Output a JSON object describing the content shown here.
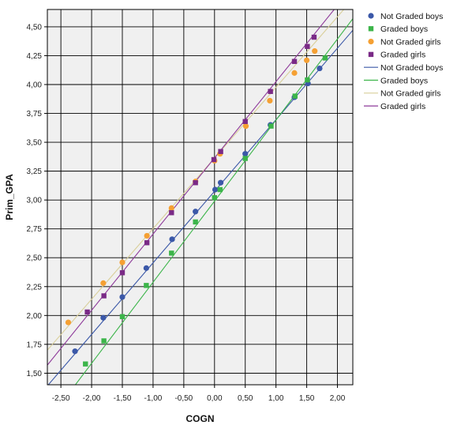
{
  "chart_data": {
    "type": "scatter",
    "xlabel": "COGN",
    "ylabel": "Prim_GPA",
    "xlim": [
      -2.72,
      2.25
    ],
    "ylim": [
      1.4,
      4.65
    ],
    "xticks": [
      -2.5,
      -2.0,
      -1.5,
      -1.0,
      -0.5,
      0.0,
      0.5,
      1.0,
      1.5,
      2.0
    ],
    "xtick_labels": [
      "-2,50",
      "-2,00",
      "-1,50",
      "-1,00",
      "-0,50",
      "0,00",
      "0,50",
      "1,00",
      "1,50",
      "2,00"
    ],
    "yticks": [
      1.5,
      1.75,
      2.0,
      2.25,
      2.5,
      2.75,
      3.0,
      3.25,
      3.5,
      3.75,
      4.0,
      4.25,
      4.5
    ],
    "ytick_labels": [
      "1,50",
      "1,75",
      "2,00",
      "2,25",
      "2,50",
      "2,75",
      "3,00",
      "3,25",
      "3,50",
      "3,75",
      "4,00",
      "4,25",
      "4,50"
    ],
    "grid": true,
    "legend_position": "right",
    "series": [
      {
        "name": "Not Graded boys",
        "kind": "points",
        "marker": "circle",
        "color": "#3b58a8",
        "x": [
          -2.27,
          -1.81,
          -1.5,
          -1.11,
          -0.69,
          -0.31,
          0.01,
          0.1,
          0.5,
          0.91,
          1.3,
          1.52,
          1.71
        ],
        "y": [
          1.69,
          1.98,
          2.16,
          2.41,
          2.66,
          2.9,
          3.09,
          3.15,
          3.4,
          3.65,
          3.89,
          4.01,
          4.14
        ]
      },
      {
        "name": "Graded boys",
        "kind": "points",
        "marker": "square",
        "color": "#3cb54a",
        "x": [
          -2.1,
          -1.8,
          -1.5,
          -1.11,
          -0.7,
          -0.31,
          0.0,
          0.09,
          0.5,
          0.92,
          1.31,
          1.51,
          1.8
        ],
        "y": [
          1.58,
          1.78,
          1.99,
          2.26,
          2.54,
          2.81,
          3.02,
          3.09,
          3.36,
          3.64,
          3.9,
          4.04,
          4.23
        ]
      },
      {
        "name": "Not Graded girls",
        "kind": "points",
        "marker": "circle",
        "color": "#f5a033",
        "x": [
          -2.38,
          -1.81,
          -1.5,
          -1.1,
          -0.7,
          -0.31,
          0.0,
          0.09,
          0.51,
          0.9,
          1.3,
          1.5,
          1.63
        ],
        "y": [
          1.94,
          2.28,
          2.46,
          2.69,
          2.93,
          3.16,
          3.34,
          3.4,
          3.64,
          3.86,
          4.1,
          4.21,
          4.29
        ]
      },
      {
        "name": "Graded girls",
        "kind": "points",
        "marker": "square",
        "color": "#7a2a86",
        "x": [
          -2.07,
          -1.8,
          -1.5,
          -1.1,
          -0.7,
          -0.31,
          -0.01,
          0.1,
          0.5,
          0.91,
          1.3,
          1.51,
          1.62
        ],
        "y": [
          2.03,
          2.17,
          2.37,
          2.63,
          2.89,
          3.15,
          3.35,
          3.42,
          3.68,
          3.94,
          4.2,
          4.33,
          4.41
        ]
      },
      {
        "name": "Not Graded boys",
        "kind": "line",
        "color": "#3b58a8",
        "x": [
          -2.72,
          2.25
        ],
        "y": [
          1.39,
          4.47
        ]
      },
      {
        "name": "Graded boys",
        "kind": "line",
        "color": "#3cb54a",
        "x": [
          -2.72,
          2.25
        ],
        "y": [
          1.08,
          4.57
        ]
      },
      {
        "name": "Not Graded girls",
        "kind": "line",
        "color": "#d9cf9a",
        "x": [
          -2.72,
          2.25
        ],
        "y": [
          1.7,
          4.74
        ]
      },
      {
        "name": "Graded girls",
        "kind": "line",
        "color": "#8e3a9a",
        "x": [
          -2.72,
          2.25
        ],
        "y": [
          1.57,
          4.85
        ]
      }
    ]
  }
}
